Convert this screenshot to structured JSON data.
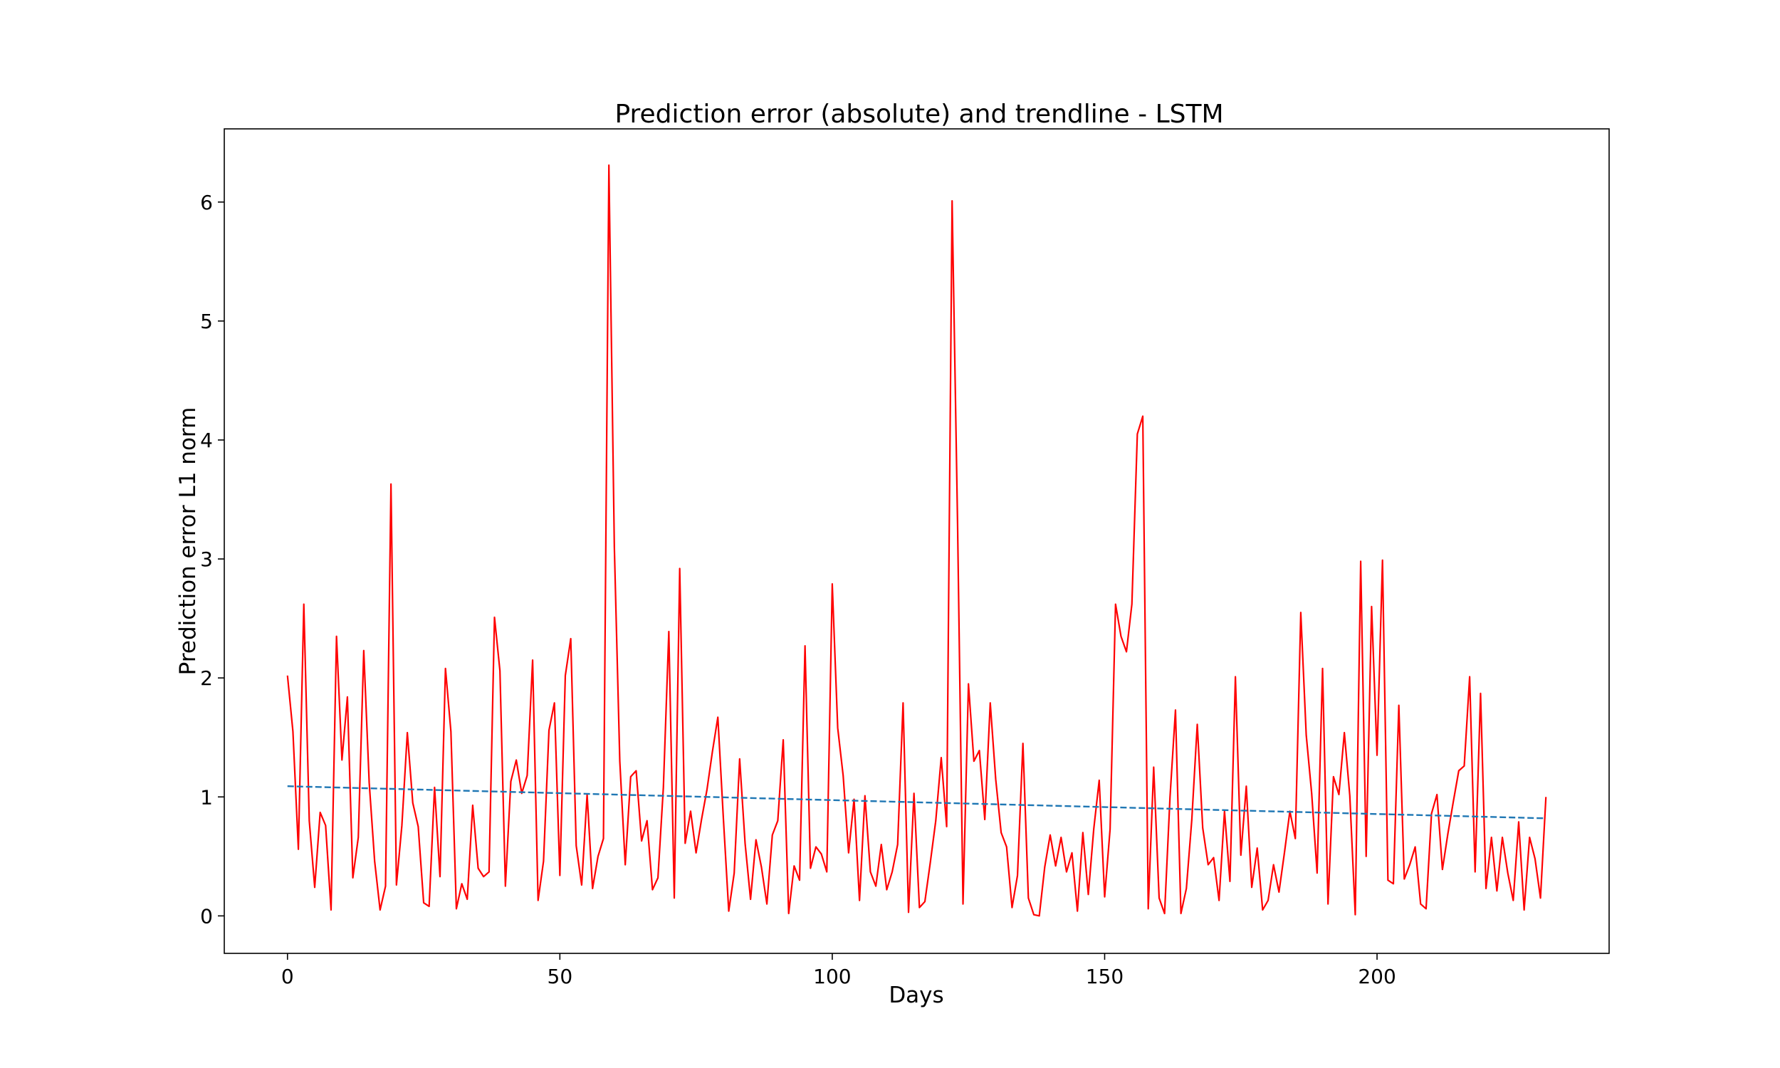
{
  "chart_data": {
    "type": "line",
    "title": "Prediction error (absolute) and trendline - LSTM",
    "xlabel": "Days",
    "ylabel": "Prediction error L1 norm",
    "xlim": [
      -11.6,
      242.6
    ],
    "ylim": [
      -0.315,
      6.615
    ],
    "xticks": [
      0,
      50,
      100,
      150,
      200
    ],
    "yticks": [
      0,
      1,
      2,
      3,
      4,
      5,
      6
    ],
    "grid": false,
    "colors": {
      "error": "#ff0000",
      "trend": "#1f77b4",
      "axes": "#000000"
    },
    "series": [
      {
        "name": "Prediction error",
        "style": "solid",
        "x_start": 0,
        "values": [
          2.02,
          1.55,
          0.56,
          2.62,
          0.8,
          0.24,
          0.87,
          0.76,
          0.05,
          2.35,
          1.31,
          1.84,
          0.32,
          0.66,
          2.23,
          1.12,
          0.46,
          0.05,
          0.25,
          3.63,
          0.26,
          0.76,
          1.54,
          0.95,
          0.75,
          0.11,
          0.08,
          1.08,
          0.33,
          2.08,
          1.55,
          0.06,
          0.27,
          0.14,
          0.93,
          0.4,
          0.33,
          0.37,
          2.51,
          2.06,
          0.25,
          1.13,
          1.31,
          1.03,
          1.18,
          2.15,
          0.13,
          0.46,
          1.56,
          1.79,
          0.34,
          2.02,
          2.33,
          0.59,
          0.26,
          1.02,
          0.23,
          0.5,
          0.65,
          6.31,
          3.1,
          1.3,
          0.43,
          1.17,
          1.22,
          0.63,
          0.8,
          0.22,
          0.32,
          1.08,
          2.39,
          0.15,
          2.92,
          0.61,
          0.88,
          0.53,
          0.81,
          1.06,
          1.38,
          1.67,
          0.83,
          0.04,
          0.36,
          1.32,
          0.61,
          0.14,
          0.64,
          0.41,
          0.1,
          0.68,
          0.8,
          1.48,
          0.02,
          0.42,
          0.3,
          2.27,
          0.4,
          0.58,
          0.52,
          0.37,
          2.79,
          1.58,
          1.18,
          0.53,
          0.98,
          0.13,
          1.01,
          0.37,
          0.25,
          0.6,
          0.22,
          0.37,
          0.6,
          1.79,
          0.03,
          1.03,
          0.07,
          0.12,
          0.45,
          0.8,
          1.33,
          0.75,
          6.01,
          3.3,
          0.1,
          1.95,
          1.3,
          1.39,
          0.81,
          1.79,
          1.15,
          0.7,
          0.58,
          0.07,
          0.34,
          1.45,
          0.15,
          0.01,
          0.0,
          0.41,
          0.68,
          0.42,
          0.66,
          0.37,
          0.53,
          0.04,
          0.7,
          0.18,
          0.73,
          1.14,
          0.16,
          0.73,
          2.62,
          2.35,
          2.22,
          2.62,
          4.05,
          4.2,
          0.06,
          1.25,
          0.15,
          0.02,
          1.0,
          1.73,
          0.02,
          0.23,
          0.81,
          1.61,
          0.74,
          0.43,
          0.49,
          0.13,
          0.88,
          0.29,
          2.01,
          0.51,
          1.09,
          0.24,
          0.57,
          0.05,
          0.13,
          0.43,
          0.2,
          0.53,
          0.88,
          0.65,
          2.55,
          1.52,
          1.03,
          0.36,
          2.08,
          0.1,
          1.17,
          1.02,
          1.54,
          1.01,
          0.01,
          2.98,
          0.5,
          2.6,
          1.35,
          2.99,
          0.3,
          0.27,
          1.77,
          0.31,
          0.43,
          0.58,
          0.1,
          0.06,
          0.86,
          1.02,
          0.39,
          0.69,
          0.96,
          1.22,
          1.26,
          2.01,
          0.37,
          1.87,
          0.23,
          0.66,
          0.21,
          0.66,
          0.36,
          0.13,
          0.79,
          0.05,
          0.66,
          0.48,
          0.15,
          1.0
        ]
      },
      {
        "name": "Trendline",
        "style": "dashed",
        "x": [
          0,
          231
        ],
        "values": [
          1.09,
          0.82
        ]
      }
    ]
  }
}
